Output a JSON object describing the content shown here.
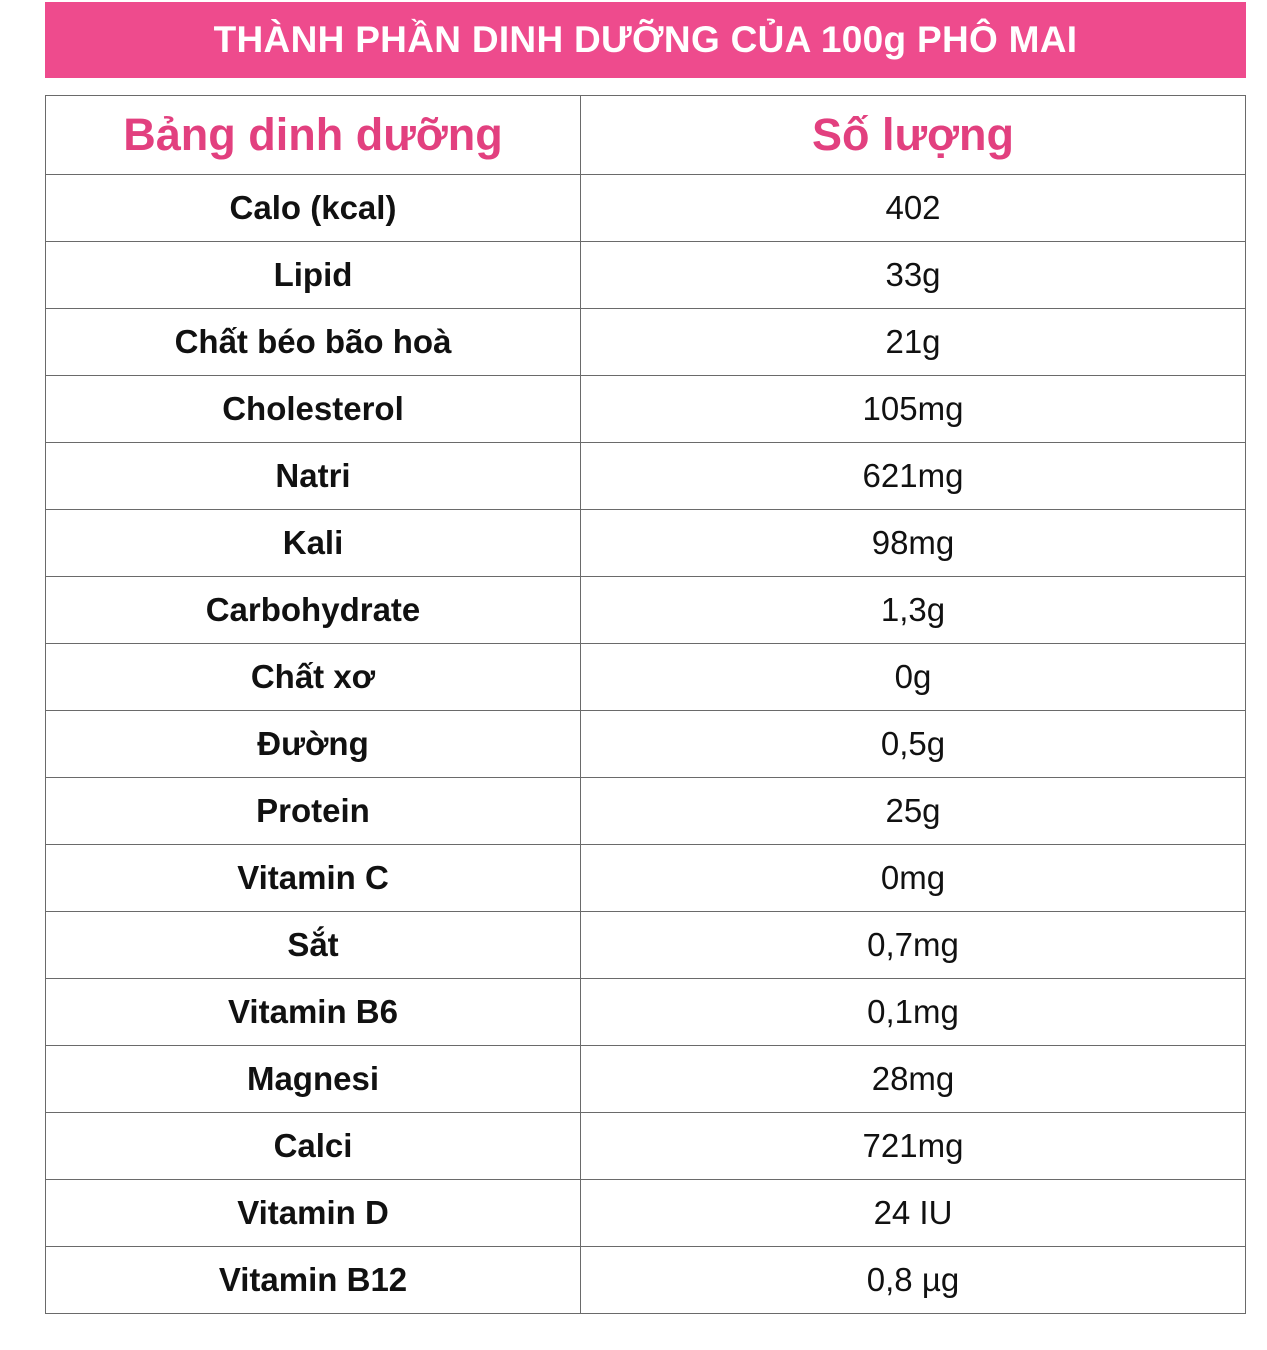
{
  "header": {
    "title": "THÀNH PHẦN DINH DƯỠNG CỦA 100g PHÔ MAI"
  },
  "table": {
    "columns": [
      "Bảng dinh dưỡng",
      "Số lượng"
    ],
    "rows": [
      [
        "Calo (kcal)",
        "402"
      ],
      [
        "Lipid",
        "33g"
      ],
      [
        "Chất béo bão hoà",
        "21g"
      ],
      [
        "Cholesterol",
        "105mg"
      ],
      [
        "Natri",
        "621mg"
      ],
      [
        "Kali",
        "98mg"
      ],
      [
        "Carbohydrate",
        "1,3g"
      ],
      [
        "Chất xơ",
        "0g"
      ],
      [
        "Đường",
        "0,5g"
      ],
      [
        "Protein",
        "25g"
      ],
      [
        "Vitamin C",
        "0mg"
      ],
      [
        "Sắt",
        "0,7mg"
      ],
      [
        "Vitamin B6",
        "0,1mg"
      ],
      [
        "Magnesi",
        "28mg"
      ],
      [
        "Calci",
        "721mg"
      ],
      [
        "Vitamin D",
        "24 IU"
      ],
      [
        "Vitamin B12",
        "0,8 µg"
      ]
    ]
  }
}
